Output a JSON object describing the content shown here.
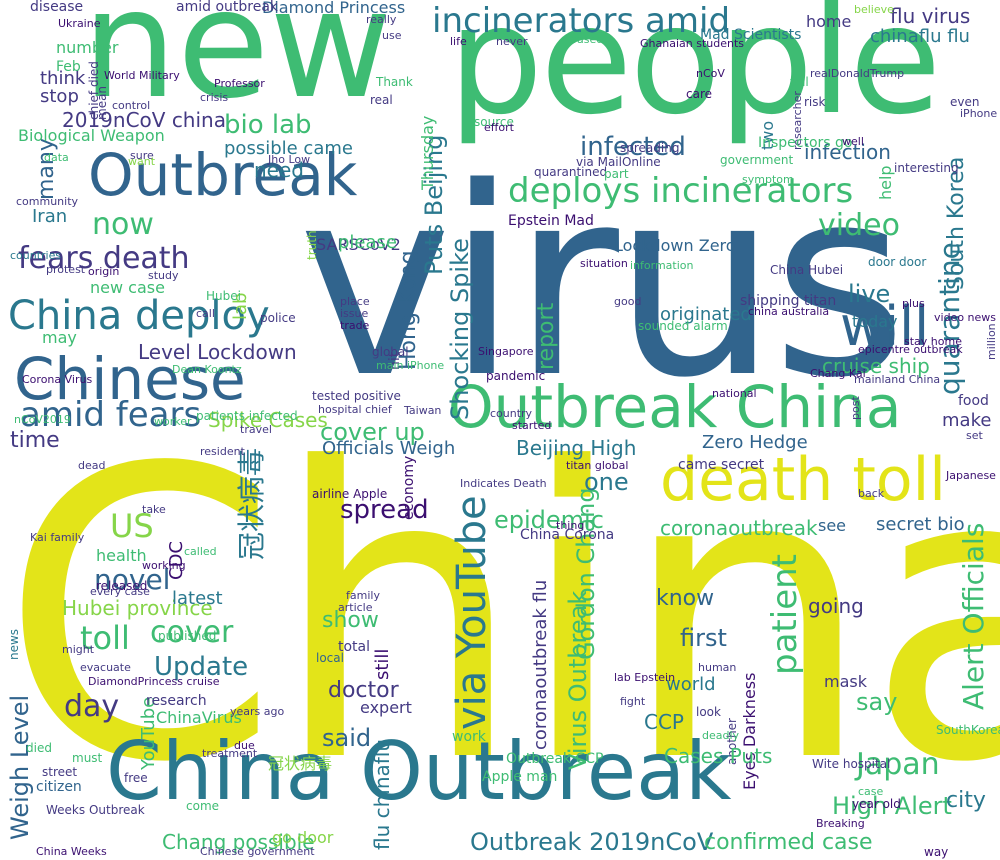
{
  "palette": {
    "yellow": "#e3e419",
    "green": "#3ebc73",
    "teal": "#2a788e",
    "blue": "#31648d",
    "purple": "#443a83",
    "dark": "#3b0f70",
    "light_green": "#86d549"
  },
  "words": [
    {
      "text": "China",
      "color": "#e3e419"
    },
    {
      "text": "virus",
      "color": "#31648d"
    },
    {
      "text": "new",
      "color": "#3ebc73"
    },
    {
      "text": "people",
      "color": "#3ebc73"
    },
    {
      "text": "China Outbreak",
      "color": "#2a788e"
    },
    {
      "text": "Outbreak",
      "color": "#31648d"
    },
    {
      "text": "Outbreak China",
      "color": "#3ebc73"
    },
    {
      "text": "death toll",
      "color": "#e3e419"
    },
    {
      "text": "Chinese",
      "color": "#31648d"
    },
    {
      "text": "will",
      "color": "#31648d"
    },
    {
      "text": "incinerators amid",
      "color": "#2a788e"
    },
    {
      "text": "deploys incinerators",
      "color": "#3ebc73"
    },
    {
      "text": "China deploy",
      "color": "#2a788e"
    },
    {
      "text": "amid fears",
      "color": "#31648d"
    },
    {
      "text": "fears death",
      "color": "#443a83"
    },
    {
      "text": "via YouTube",
      "color": "#2a788e"
    },
    {
      "text": "cover up",
      "color": "#3ebc73"
    },
    {
      "text": "spread",
      "color": "#3b0f70"
    },
    {
      "text": "epidemic",
      "color": "#3ebc73"
    },
    {
      "text": "bio lab",
      "color": "#3ebc73"
    },
    {
      "text": "infected",
      "color": "#31648d"
    },
    {
      "text": "video",
      "color": "#3ebc73"
    },
    {
      "text": "quarantine",
      "color": "#2a788e"
    },
    {
      "text": "cruise ship",
      "color": "#3ebc73"
    },
    {
      "text": "Level Lockdown",
      "color": "#443a83"
    },
    {
      "text": "novel",
      "color": "#31648d"
    },
    {
      "text": "toll",
      "color": "#3ebc73"
    },
    {
      "text": "cover",
      "color": "#3ebc73"
    },
    {
      "text": "patient",
      "color": "#2a788e"
    },
    {
      "text": "Update",
      "color": "#3ebc73"
    },
    {
      "text": "Japan",
      "color": "#3ebc73"
    },
    {
      "text": "High Alert",
      "color": "#3ebc73"
    },
    {
      "text": "Outbreak 2019nCoV",
      "color": "#2a788e"
    },
    {
      "text": "confirmed case",
      "color": "#3ebc73"
    },
    {
      "text": "day",
      "color": "#443a83"
    },
    {
      "text": "said",
      "color": "#31648d"
    },
    {
      "text": "now",
      "color": "#3ebc73"
    },
    {
      "text": "US",
      "color": "#86d549"
    },
    {
      "text": "time",
      "color": "#443a83"
    },
    {
      "text": "2019nCoV china",
      "color": "#443a83"
    },
    {
      "text": "Hubei province",
      "color": "#86d549"
    },
    {
      "text": "Spike Cases",
      "color": "#86d549"
    },
    {
      "text": "Beijing High",
      "color": "#2a788e"
    },
    {
      "text": "Zero Hedge",
      "color": "#31648d"
    },
    {
      "text": "secret bio",
      "color": "#31648d"
    },
    {
      "text": "flu virus",
      "color": "#443a83"
    },
    {
      "text": "chinaflu flu",
      "color": "#2a788e"
    },
    {
      "text": "Puts Beijing",
      "color": "#2a788e"
    },
    {
      "text": "Shocking Spike",
      "color": "#2a788e"
    },
    {
      "text": "possible came",
      "color": "#2a788e"
    },
    {
      "text": "infection",
      "color": "#31648d"
    },
    {
      "text": "many",
      "color": "#31648d"
    },
    {
      "text": "report",
      "color": "#3ebc73"
    },
    {
      "text": "live",
      "color": "#2a788e"
    },
    {
      "text": "today",
      "color": "#2a788e"
    },
    {
      "text": "Officials Weigh",
      "color": "#31648d"
    },
    {
      "text": "one",
      "color": "#2a788e"
    },
    {
      "text": "know",
      "color": "#31648d"
    },
    {
      "text": "first",
      "color": "#31648d"
    },
    {
      "text": "show",
      "color": "#3ebc73"
    },
    {
      "text": "doctor",
      "color": "#443a83"
    },
    {
      "text": "world",
      "color": "#2a788e"
    },
    {
      "text": "CCP",
      "color": "#2a788e"
    },
    {
      "text": "say",
      "color": "#3ebc73"
    },
    {
      "text": "city",
      "color": "#2a788e"
    },
    {
      "text": "going",
      "color": "#443a83"
    },
    {
      "text": "Cases Puts",
      "color": "#3ebc73"
    },
    {
      "text": "South Korea",
      "color": "#2a788e"
    },
    {
      "text": "Lockdown Zero",
      "color": "#31648d"
    },
    {
      "text": "China Corona",
      "color": "#443a83"
    },
    {
      "text": "coronaoutbreak",
      "color": "#3ebc73"
    },
    {
      "text": "Virus Outbreak",
      "color": "#3ebc73"
    },
    {
      "text": "coronaoutbreak flu",
      "color": "#443a83"
    },
    {
      "text": "Alert Officials",
      "color": "#3ebc73"
    },
    {
      "text": "冠状病毒",
      "color": "#2a788e"
    },
    {
      "text": "Chang possible",
      "color": "#3ebc73"
    },
    {
      "text": "Hong Kong",
      "color": "#31648d"
    },
    {
      "text": "Gordon Chang",
      "color": "#3ebc73"
    },
    {
      "text": "Diamond Princess",
      "color": "#31648d"
    },
    {
      "text": "amid outbreak",
      "color": "#443a83"
    },
    {
      "text": "disease",
      "color": "#443a83"
    },
    {
      "text": "ChinaVirus",
      "color": "#3ebc73"
    },
    {
      "text": "research",
      "color": "#443a83"
    },
    {
      "text": "Weigh Level",
      "color": "#31648d"
    },
    {
      "text": "Biological Weapon",
      "color": "#3ebc73"
    },
    {
      "text": "Eyes Darkness",
      "color": "#3b0f70"
    },
    {
      "text": "flu chinaflu",
      "color": "#2a788e"
    },
    {
      "text": "Mad Scientists",
      "color": "#2a788e"
    },
    {
      "text": "home",
      "color": "#443a83"
    },
    {
      "text": "Iran",
      "color": "#2a788e"
    },
    {
      "text": "Epstein Mad",
      "color": "#3b0f70"
    },
    {
      "text": "SARSCoV2",
      "color": "#443a83"
    },
    {
      "text": "Inspectors go",
      "color": "#3ebc73"
    },
    {
      "text": "help",
      "color": "#2a788e"
    },
    {
      "text": "two",
      "color": "#2a788e"
    },
    {
      "text": "need",
      "color": "#443a83"
    },
    {
      "text": "think",
      "color": "#443a83"
    },
    {
      "text": "stop",
      "color": "#3ebc73"
    },
    {
      "text": "number",
      "color": "#3ebc73"
    },
    {
      "text": "Feb",
      "color": "#86d549"
    },
    {
      "text": "truth",
      "color": "#86d549"
    },
    {
      "text": "lab",
      "color": "#3ebc73"
    },
    {
      "text": "please",
      "color": "#3ebc73"
    },
    {
      "text": "new case",
      "color": "#3ebc73"
    },
    {
      "text": "may",
      "color": "#2a788e"
    },
    {
      "text": "originated",
      "color": "#443a83"
    },
    {
      "text": "shipping titan",
      "color": "#443a83"
    },
    {
      "text": "came secret",
      "color": "#31648d"
    },
    {
      "text": "see",
      "color": "#3ebc73"
    },
    {
      "text": "CDC",
      "color": "#3b0f70"
    },
    {
      "text": "health",
      "color": "#2a788e"
    },
    {
      "text": "latest",
      "color": "#443a83"
    },
    {
      "text": "still",
      "color": "#3b0f70"
    },
    {
      "text": "total",
      "color": "#443a83"
    },
    {
      "text": "expert",
      "color": "#3ebc73"
    },
    {
      "text": "YouTube",
      "color": "#31648d"
    },
    {
      "text": "citizen",
      "color": "#86d549"
    },
    {
      "text": "冠状病毒",
      "color": "#86d549"
    },
    {
      "text": "go door",
      "color": "#3ebc73"
    },
    {
      "text": "work",
      "color": "#3ebc73"
    },
    {
      "text": "Outbreak CCP",
      "color": "#3ebc73"
    },
    {
      "text": "Apple man",
      "color": "#443a83"
    },
    {
      "text": "another",
      "color": "#443a83"
    },
    {
      "text": "mask",
      "color": "#2a788e"
    },
    {
      "text": "door door",
      "color": "#443a83"
    },
    {
      "text": "spreading",
      "color": "#443a83"
    },
    {
      "text": "via MailOnline",
      "color": "#3b0f70"
    },
    {
      "text": "released",
      "color": "#31648d"
    },
    {
      "text": "local",
      "color": "#3ebc73"
    },
    {
      "text": "died",
      "color": "#3ebc73"
    },
    {
      "text": "must",
      "color": "#443a83"
    },
    {
      "text": "street",
      "color": "#443a83"
    },
    {
      "text": "free",
      "color": "#3ebc73"
    },
    {
      "text": "come",
      "color": "#443a83"
    },
    {
      "text": "Weeks Outbreak",
      "color": "#3b0f70"
    },
    {
      "text": "China Weeks",
      "color": "#443a83"
    },
    {
      "text": "Chinese government",
      "color": "#3b0f70"
    },
    {
      "text": "Corona Virus",
      "color": "#2a788e"
    },
    {
      "text": "countries",
      "color": "#443a83"
    },
    {
      "text": "tested positive",
      "color": "#443a83"
    },
    {
      "text": "hospital chief",
      "color": "#3ebc73"
    },
    {
      "text": "patients infected",
      "color": "#443a83"
    },
    {
      "text": "Taiwan",
      "color": "#443a83"
    },
    {
      "text": "Indicates Death",
      "color": "#3b0f70"
    },
    {
      "text": "titan global",
      "color": "#3b0f70"
    },
    {
      "text": "airline Apple",
      "color": "#3b0f70"
    },
    {
      "text": "economy",
      "color": "#3b0f70"
    },
    {
      "text": "thing",
      "color": "#3ebc73"
    },
    {
      "text": "Hubei",
      "color": "#443a83"
    },
    {
      "text": "police",
      "color": "#443a83"
    },
    {
      "text": "hit",
      "color": "#443a83"
    },
    {
      "text": "global",
      "color": "#3ebc73"
    },
    {
      "text": "main iPhone",
      "color": "#3b0f70"
    },
    {
      "text": "pandemic",
      "color": "#3b0f70"
    },
    {
      "text": "Singapore",
      "color": "#3b0f70"
    },
    {
      "text": "situation",
      "color": "#3ebc73"
    },
    {
      "text": "information",
      "color": "#443a83"
    },
    {
      "text": "good",
      "color": "#3ebc73"
    },
    {
      "text": "sounded alarm",
      "color": "#443a83"
    },
    {
      "text": "China Hubei",
      "color": "#443a83"
    },
    {
      "text": "Jho Low",
      "color": "#443a83"
    },
    {
      "text": "quarantined",
      "color": "#3ebc73"
    },
    {
      "text": "part",
      "color": "#3ebc73"
    },
    {
      "text": "government",
      "color": "#3ebc73"
    },
    {
      "text": "source",
      "color": "#3ebc73"
    },
    {
      "text": "Thank",
      "color": "#443a83"
    },
    {
      "text": "real",
      "color": "#3b0f70"
    },
    {
      "text": "Thursday",
      "color": "#3ebc73"
    },
    {
      "text": "care",
      "color": "#443a83"
    },
    {
      "text": "tell",
      "color": "#443a83"
    },
    {
      "text": "realDonaldTrump",
      "color": "#3b0f70"
    },
    {
      "text": "risk",
      "color": "#443a83"
    },
    {
      "text": "well",
      "color": "#443a83"
    },
    {
      "text": "even",
      "color": "#443a83"
    },
    {
      "text": "iPhone supplier",
      "color": "#3ebc73"
    },
    {
      "text": "interesting",
      "color": "#443a83"
    },
    {
      "text": "published",
      "color": "#443a83"
    },
    {
      "text": "might",
      "color": "#3b0f70"
    },
    {
      "text": "evacuate",
      "color": "#443a83"
    },
    {
      "text": "DiamondPrincess cruise",
      "color": "#3ebc73"
    },
    {
      "text": "every case",
      "color": "#3ebc73"
    },
    {
      "text": "Dean Koontz",
      "color": "#443a83"
    },
    {
      "text": "nCoV2019",
      "color": "#3ebc73"
    },
    {
      "text": "dead",
      "color": "#443a83"
    },
    {
      "text": "worker",
      "color": "#443a83"
    },
    {
      "text": "resident",
      "color": "#443a83"
    },
    {
      "text": "travel",
      "color": "#443a83"
    },
    {
      "text": "fight",
      "color": "#443a83"
    },
    {
      "text": "human",
      "color": "#3ebc73"
    },
    {
      "text": "look",
      "color": "#443a83"
    },
    {
      "text": "deadly",
      "color": "#3b0f70"
    },
    {
      "text": "Wite hospital",
      "color": "#3ebc73"
    },
    {
      "text": "year old",
      "color": "#3b0f70"
    },
    {
      "text": "SouthKorea",
      "color": "#3ebc73"
    },
    {
      "text": "Breaking",
      "color": "#3b0f70"
    },
    {
      "text": "case",
      "color": "#443a83"
    },
    {
      "text": "way",
      "color": "#443a83"
    },
    {
      "text": "back",
      "color": "#443a83"
    },
    {
      "text": "make",
      "color": "#443a83"
    },
    {
      "text": "food",
      "color": "#3b0f70"
    },
    {
      "text": "set",
      "color": "#3ebc73"
    },
    {
      "text": "china australia",
      "color": "#443a83"
    },
    {
      "text": "symptom",
      "color": "#3b0f70"
    },
    {
      "text": "mainland China",
      "color": "#2a788e"
    },
    {
      "text": "Japanese",
      "color": "#443a83"
    },
    {
      "text": "community",
      "color": "#3b0f70"
    },
    {
      "text": "Professor",
      "color": "#3b0f70"
    },
    {
      "text": "Ukraine",
      "color": "#443a83"
    },
    {
      "text": "World Military",
      "color": "#443a83"
    },
    {
      "text": "control",
      "color": "#443a83"
    },
    {
      "text": "use",
      "color": "#443a83"
    },
    {
      "text": "really",
      "color": "#3b0f70"
    },
    {
      "text": "life",
      "color": "#443a83"
    },
    {
      "text": "news",
      "color": "#3b0f70"
    },
    {
      "text": "never",
      "color": "#3b0f70"
    },
    {
      "text": "effort",
      "color": "#3b0f70"
    },
    {
      "text": "Ghanaian students",
      "color": "#3ebc73"
    },
    {
      "text": "nCoV",
      "color": "#86d549"
    },
    {
      "text": "based",
      "color": "#443a83"
    },
    {
      "text": "believe",
      "color": "#443a83"
    },
    {
      "text": "chief died",
      "color": "#86d549"
    },
    {
      "text": "mean",
      "color": "#443a83"
    },
    {
      "text": "sure",
      "color": "#3ebc73"
    },
    {
      "text": "want",
      "color": "#443a83"
    },
    {
      "text": "crisis",
      "color": "#3b0f70"
    },
    {
      "text": "data",
      "color": "#443a83"
    },
    {
      "text": "treatment",
      "color": "#443a83"
    },
    {
      "text": "due",
      "color": "#3b0f70"
    },
    {
      "text": "years ago",
      "color": "#3ebc73"
    },
    {
      "text": "take",
      "color": "#443a83"
    },
    {
      "text": "working",
      "color": "#443a83"
    },
    {
      "text": "called",
      "color": "#3b0f70"
    },
    {
      "text": "family",
      "color": "#443a83"
    },
    {
      "text": "article",
      "color": "#443a83"
    },
    {
      "text": "lab Epstein",
      "color": "#3b0f70"
    },
    {
      "text": "Kai family",
      "color": "#443a83"
    },
    {
      "text": "protest",
      "color": "#443a83"
    },
    {
      "text": "origin",
      "color": "#443a83"
    },
    {
      "text": "study",
      "color": "#443a83"
    },
    {
      "text": "post",
      "color": "#443a83"
    },
    {
      "text": "call",
      "color": "#3b0f70"
    },
    {
      "text": "place",
      "color": "#443a83"
    },
    {
      "text": "issue",
      "color": "#443a83"
    },
    {
      "text": "trade",
      "color": "#3b0f70"
    },
    {
      "text": "country",
      "color": "#3b0f70"
    },
    {
      "text": "million",
      "color": "#3b0f70"
    },
    {
      "text": "started",
      "color": "#3b0f70"
    },
    {
      "text": "national",
      "color": "#443a83"
    },
    {
      "text": "Chang Kai",
      "color": "#3b0f70"
    },
    {
      "text": "stay home",
      "color": "#3b0f70"
    },
    {
      "text": "researcher",
      "color": "#3b0f70"
    },
    {
      "text": "video news",
      "color": "#3ebc73"
    },
    {
      "text": "plus",
      "color": "#3b0f70"
    },
    {
      "text": "epicentre outbreak",
      "color": "#443a83"
    }
  ]
}
